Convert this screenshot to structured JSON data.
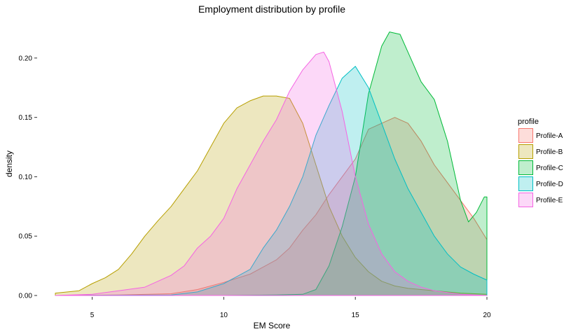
{
  "chart_data": {
    "type": "area",
    "title": "Employment distribution by profile",
    "xlabel": "EM Score",
    "ylabel": "density",
    "xlim": [
      3.6,
      20
    ],
    "ylim": [
      0,
      0.23
    ],
    "x_ticks": [
      5,
      10,
      15,
      20
    ],
    "x_tick_labels": [
      "5",
      "10",
      "15",
      "20"
    ],
    "y_ticks": [
      0,
      0.05,
      0.1,
      0.15,
      0.2
    ],
    "y_tick_labels": [
      "0.00",
      "0.05",
      "0.10",
      "0.15",
      "0.20"
    ],
    "grid": false,
    "legend": {
      "title": "profile",
      "position": "right"
    },
    "series": [
      {
        "name": "Profile-A",
        "fill": "#F8766D",
        "stroke": "#F8766D",
        "points": [
          [
            3.6,
            0
          ],
          [
            6,
            0.0005
          ],
          [
            8,
            0.0015
          ],
          [
            9,
            0.005
          ],
          [
            10,
            0.011
          ],
          [
            11,
            0.018
          ],
          [
            12,
            0.03
          ],
          [
            12.5,
            0.04
          ],
          [
            13,
            0.055
          ],
          [
            13.5,
            0.068
          ],
          [
            14,
            0.085
          ],
          [
            14.5,
            0.1
          ],
          [
            15,
            0.115
          ],
          [
            15.5,
            0.14
          ],
          [
            16,
            0.145
          ],
          [
            16.5,
            0.15
          ],
          [
            17,
            0.145
          ],
          [
            17.5,
            0.13
          ],
          [
            18,
            0.11
          ],
          [
            18.5,
            0.095
          ],
          [
            19,
            0.08
          ],
          [
            19.5,
            0.065
          ],
          [
            20,
            0.047
          ]
        ]
      },
      {
        "name": "Profile-B",
        "fill": "#B79F00",
        "stroke": "#B79F00",
        "points": [
          [
            3.6,
            0.002
          ],
          [
            4.5,
            0.004
          ],
          [
            5,
            0.01
          ],
          [
            5.5,
            0.015
          ],
          [
            6,
            0.022
          ],
          [
            6.5,
            0.035
          ],
          [
            7,
            0.05
          ],
          [
            7.5,
            0.063
          ],
          [
            8,
            0.075
          ],
          [
            8.5,
            0.09
          ],
          [
            9,
            0.105
          ],
          [
            9.5,
            0.125
          ],
          [
            10,
            0.145
          ],
          [
            10.5,
            0.158
          ],
          [
            11,
            0.164
          ],
          [
            11.5,
            0.168
          ],
          [
            12,
            0.168
          ],
          [
            12.5,
            0.166
          ],
          [
            13,
            0.145
          ],
          [
            13.5,
            0.11
          ],
          [
            14,
            0.075
          ],
          [
            14.5,
            0.05
          ],
          [
            15,
            0.032
          ],
          [
            15.5,
            0.02
          ],
          [
            16,
            0.012
          ],
          [
            16.5,
            0.008
          ],
          [
            17,
            0.006
          ],
          [
            18,
            0.004
          ],
          [
            19,
            0.002
          ],
          [
            20,
            0.001
          ]
        ]
      },
      {
        "name": "Profile-C",
        "fill": "#00BA38",
        "stroke": "#00BA38",
        "points": [
          [
            3.6,
            0
          ],
          [
            10,
            0
          ],
          [
            12,
            0.0005
          ],
          [
            13,
            0.001
          ],
          [
            13.5,
            0.005
          ],
          [
            14,
            0.025
          ],
          [
            14.5,
            0.058
          ],
          [
            15,
            0.1
          ],
          [
            15.5,
            0.17
          ],
          [
            16,
            0.21
          ],
          [
            16.3,
            0.222
          ],
          [
            16.7,
            0.22
          ],
          [
            17,
            0.205
          ],
          [
            17.5,
            0.18
          ],
          [
            18,
            0.165
          ],
          [
            18.5,
            0.13
          ],
          [
            18.8,
            0.1
          ],
          [
            19,
            0.08
          ],
          [
            19.3,
            0.062
          ],
          [
            19.6,
            0.07
          ],
          [
            19.9,
            0.083
          ],
          [
            20,
            0.083
          ]
        ]
      },
      {
        "name": "Profile-D",
        "fill": "#00BFC4",
        "stroke": "#00BFC4",
        "points": [
          [
            3.6,
            0
          ],
          [
            8,
            0.0005
          ],
          [
            9,
            0.003
          ],
          [
            10,
            0.01
          ],
          [
            10.5,
            0.016
          ],
          [
            11,
            0.022
          ],
          [
            11.5,
            0.04
          ],
          [
            12,
            0.055
          ],
          [
            12.5,
            0.075
          ],
          [
            13,
            0.1
          ],
          [
            13.5,
            0.135
          ],
          [
            14,
            0.16
          ],
          [
            14.5,
            0.183
          ],
          [
            15,
            0.193
          ],
          [
            15.5,
            0.175
          ],
          [
            16,
            0.145
          ],
          [
            16.5,
            0.115
          ],
          [
            17,
            0.09
          ],
          [
            17.5,
            0.07
          ],
          [
            18,
            0.05
          ],
          [
            18.5,
            0.035
          ],
          [
            19,
            0.024
          ],
          [
            19.5,
            0.018
          ],
          [
            20,
            0.013
          ]
        ]
      },
      {
        "name": "Profile-E",
        "fill": "#F564E3",
        "stroke": "#F564E3",
        "points": [
          [
            3.6,
            0
          ],
          [
            5,
            0.001
          ],
          [
            6,
            0.004
          ],
          [
            7,
            0.007
          ],
          [
            8,
            0.017
          ],
          [
            8.5,
            0.025
          ],
          [
            9,
            0.04
          ],
          [
            9.5,
            0.05
          ],
          [
            10,
            0.065
          ],
          [
            10.5,
            0.09
          ],
          [
            11,
            0.11
          ],
          [
            11.5,
            0.13
          ],
          [
            12,
            0.148
          ],
          [
            12.5,
            0.172
          ],
          [
            13,
            0.19
          ],
          [
            13.5,
            0.203
          ],
          [
            13.8,
            0.205
          ],
          [
            14,
            0.197
          ],
          [
            14.5,
            0.155
          ],
          [
            15,
            0.1
          ],
          [
            15.5,
            0.06
          ],
          [
            16,
            0.035
          ],
          [
            16.5,
            0.02
          ],
          [
            17,
            0.012
          ],
          [
            17.5,
            0.007
          ],
          [
            18,
            0.004
          ],
          [
            19,
            0.001
          ],
          [
            20,
            0
          ]
        ]
      }
    ]
  }
}
